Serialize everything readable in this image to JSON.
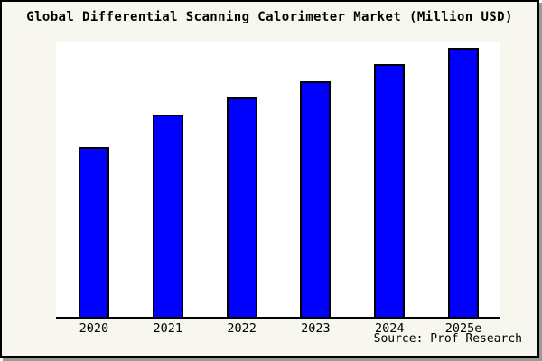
{
  "window": {
    "title": "Global Differential Scanning Calorimeter Market (Million USD)"
  },
  "footer": {
    "source_label": "Source: Prof Research"
  },
  "chart_data": {
    "type": "bar",
    "title": "Global Differential Scanning Calorimeter Market (Million USD)",
    "categories": [
      "2020",
      "2021",
      "2022",
      "2023",
      "2024",
      "2025e"
    ],
    "values": [
      188,
      224,
      243,
      261,
      280,
      298
    ],
    "values_unit": "relative bar height (y-axis has no ticks or labels)",
    "xlabel": "",
    "ylabel": "",
    "grid": false,
    "legend_position": "none",
    "source": "Source: Prof Research",
    "colors": {
      "bar_fill": "#0000ff",
      "bar_border": "#000000",
      "plot_bg": "#ffffff",
      "figure_bg": "#f7f7ef",
      "frame_border": "#000000",
      "shadow": "#999999"
    }
  }
}
